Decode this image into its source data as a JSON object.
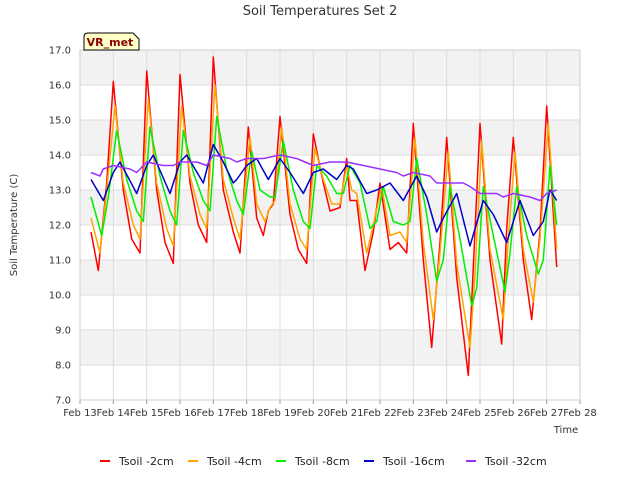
{
  "chart_data": {
    "type": "line",
    "title": "Soil Temperatures Set 2",
    "xlabel": "Time",
    "ylabel": "Soil Temperature (C)",
    "badge": "VR_met",
    "ylim": [
      7.0,
      17.0
    ],
    "yticks": [
      "7.0",
      "8.0",
      "9.0",
      "10.0",
      "11.0",
      "12.0",
      "13.0",
      "14.0",
      "15.0",
      "16.0",
      "17.0"
    ],
    "xlim": [
      13,
      28
    ],
    "xticks": [
      {
        "x": 13,
        "label": "Feb 13"
      },
      {
        "x": 14,
        "label": "Feb 14"
      },
      {
        "x": 15,
        "label": "Feb 15"
      },
      {
        "x": 16,
        "label": "Feb 16"
      },
      {
        "x": 17,
        "label": "Feb 17"
      },
      {
        "x": 18,
        "label": "Feb 18"
      },
      {
        "x": 19,
        "label": "Feb 19"
      },
      {
        "x": 20,
        "label": "Feb 20"
      },
      {
        "x": 21,
        "label": "Feb 21"
      },
      {
        "x": 22,
        "label": "Feb 22"
      },
      {
        "x": 23,
        "label": "Feb 23"
      },
      {
        "x": 24,
        "label": "Feb 24"
      },
      {
        "x": 25,
        "label": "Feb 25"
      },
      {
        "x": 26,
        "label": "Feb 26"
      },
      {
        "x": 27,
        "label": "Feb 27"
      },
      {
        "x": 28,
        "label": "Feb 28"
      }
    ],
    "legend_position": "bottom",
    "grid": true,
    "series": [
      {
        "name": "Tsoil -2cm",
        "color": "#ff0000",
        "x": [
          13.33,
          13.55,
          13.8,
          14.0,
          14.3,
          14.55,
          14.8,
          15.0,
          15.3,
          15.55,
          15.8,
          16.0,
          16.3,
          16.55,
          16.8,
          17.0,
          17.3,
          17.6,
          17.8,
          18.05,
          18.3,
          18.5,
          18.65,
          18.8,
          19.0,
          19.3,
          19.55,
          19.8,
          20.0,
          20.3,
          20.5,
          20.8,
          21.0,
          21.1,
          21.3,
          21.55,
          21.8,
          22.0,
          22.3,
          22.55,
          22.8,
          23.0,
          23.3,
          23.55,
          23.8,
          24.0,
          24.3,
          24.65,
          24.8,
          25.0,
          25.3,
          25.65,
          25.8,
          26.0,
          26.3,
          26.55,
          26.8,
          27.0,
          27.3
        ],
        "y": [
          11.8,
          10.7,
          13.2,
          16.1,
          13.0,
          11.6,
          11.2,
          16.4,
          13.0,
          11.5,
          10.9,
          16.3,
          13.2,
          12.0,
          11.5,
          16.8,
          13.0,
          11.8,
          11.2,
          14.8,
          12.2,
          11.7,
          12.4,
          12.6,
          15.1,
          12.3,
          11.3,
          10.9,
          14.6,
          13.2,
          12.4,
          12.5,
          13.9,
          12.7,
          12.7,
          10.7,
          11.8,
          13.2,
          11.3,
          11.5,
          11.2,
          14.9,
          11.0,
          8.5,
          11.5,
          14.5,
          10.5,
          7.7,
          10.8,
          14.9,
          11.0,
          8.6,
          11.9,
          14.5,
          11.0,
          9.3,
          11.8,
          15.4,
          10.8
        ]
      },
      {
        "name": "Tsoil -4cm",
        "color": "#ffa500",
        "x": [
          13.33,
          13.6,
          13.8,
          14.05,
          14.3,
          14.6,
          14.8,
          15.05,
          15.3,
          15.6,
          15.8,
          16.05,
          16.3,
          16.6,
          16.8,
          17.05,
          17.3,
          17.6,
          17.8,
          18.1,
          18.3,
          18.55,
          18.7,
          18.85,
          19.05,
          19.3,
          19.6,
          19.8,
          20.05,
          20.3,
          20.55,
          20.8,
          21.0,
          21.15,
          21.3,
          21.6,
          21.8,
          22.05,
          22.3,
          22.6,
          22.8,
          23.05,
          23.3,
          23.6,
          23.8,
          24.05,
          24.3,
          24.7,
          24.85,
          25.05,
          25.3,
          25.7,
          25.85,
          26.05,
          26.3,
          26.6,
          26.8,
          27.05,
          27.3
        ],
        "y": [
          12.2,
          11.2,
          13.0,
          15.4,
          13.2,
          12.0,
          11.6,
          15.6,
          13.2,
          11.9,
          11.4,
          15.4,
          13.4,
          12.3,
          11.9,
          16.0,
          13.3,
          12.2,
          11.6,
          14.5,
          12.6,
          12.1,
          12.5,
          12.7,
          14.8,
          12.6,
          11.6,
          11.3,
          14.2,
          13.3,
          12.6,
          12.6,
          13.7,
          13.0,
          12.9,
          11.2,
          12.0,
          13.1,
          11.7,
          11.8,
          11.5,
          14.5,
          11.5,
          9.3,
          11.2,
          14.1,
          10.9,
          8.5,
          10.6,
          14.4,
          11.3,
          9.3,
          11.6,
          14.1,
          11.3,
          9.8,
          11.6,
          14.9,
          11.3
        ]
      },
      {
        "name": "Tsoil -8cm",
        "color": "#00ee00",
        "x": [
          13.33,
          13.65,
          13.85,
          14.1,
          14.4,
          14.7,
          14.9,
          15.1,
          15.4,
          15.7,
          15.9,
          16.1,
          16.4,
          16.7,
          16.9,
          17.1,
          17.4,
          17.7,
          17.9,
          18.15,
          18.4,
          18.7,
          18.85,
          19.1,
          19.4,
          19.7,
          19.9,
          20.1,
          20.4,
          20.7,
          20.9,
          21.1,
          21.4,
          21.7,
          21.9,
          22.1,
          22.4,
          22.7,
          22.9,
          23.1,
          23.4,
          23.7,
          23.9,
          24.1,
          24.4,
          24.75,
          24.9,
          25.1,
          25.4,
          25.75,
          25.9,
          26.1,
          26.4,
          26.75,
          26.9,
          27.1,
          27.3
        ],
        "y": [
          12.8,
          11.7,
          12.8,
          14.7,
          13.3,
          12.4,
          12.1,
          14.8,
          13.4,
          12.4,
          12.0,
          14.7,
          13.5,
          12.7,
          12.4,
          15.1,
          13.6,
          12.7,
          12.3,
          14.1,
          13.0,
          12.8,
          12.8,
          14.4,
          13.0,
          12.1,
          11.9,
          13.7,
          13.4,
          12.9,
          12.9,
          13.7,
          13.2,
          11.9,
          12.1,
          13.1,
          12.1,
          12.0,
          12.1,
          13.9,
          12.3,
          10.4,
          11.0,
          13.1,
          11.6,
          9.7,
          10.2,
          13.1,
          11.7,
          10.1,
          11.2,
          13.1,
          11.7,
          10.6,
          11.0,
          13.7,
          12.0
        ]
      },
      {
        "name": "Tsoil -16cm",
        "color": "#0000cc",
        "x": [
          13.33,
          13.7,
          14.0,
          14.2,
          14.7,
          15.0,
          15.2,
          15.7,
          16.0,
          16.2,
          16.7,
          17.0,
          17.3,
          17.6,
          17.7,
          18.0,
          18.3,
          18.65,
          19.0,
          19.3,
          19.7,
          20.0,
          20.3,
          20.7,
          21.0,
          21.2,
          21.6,
          21.9,
          22.3,
          22.7,
          23.1,
          23.4,
          23.7,
          23.9,
          24.3,
          24.7,
          25.1,
          25.4,
          25.8,
          26.2,
          26.6,
          26.9,
          27.1,
          27.3
        ],
        "y": [
          13.3,
          12.7,
          13.5,
          13.8,
          12.9,
          13.7,
          14.0,
          12.9,
          13.8,
          14.0,
          13.2,
          14.3,
          13.8,
          13.2,
          13.3,
          13.7,
          13.9,
          13.3,
          13.9,
          13.5,
          12.9,
          13.5,
          13.6,
          13.3,
          13.7,
          13.6,
          12.9,
          13.0,
          13.2,
          12.7,
          13.4,
          12.8,
          11.8,
          12.2,
          12.9,
          11.4,
          12.7,
          12.3,
          11.5,
          12.7,
          11.7,
          12.1,
          13.0,
          12.7
        ]
      },
      {
        "name": "Tsoil -32cm",
        "color": "#9b30ff",
        "x": [
          13.33,
          13.6,
          13.7,
          14.0,
          14.5,
          14.7,
          15.0,
          15.5,
          15.8,
          16.0,
          16.5,
          16.8,
          17.0,
          17.5,
          17.7,
          18.0,
          18.5,
          19.0,
          19.5,
          20.0,
          20.5,
          21.0,
          21.5,
          22.0,
          22.5,
          22.7,
          23.0,
          23.5,
          23.7,
          24.0,
          24.5,
          24.7,
          25.0,
          25.5,
          25.7,
          26.0,
          26.5,
          26.8,
          27.0,
          27.3
        ],
        "y": [
          13.5,
          13.4,
          13.6,
          13.7,
          13.6,
          13.5,
          13.8,
          13.7,
          13.7,
          13.8,
          13.8,
          13.7,
          14.0,
          13.9,
          13.8,
          13.9,
          13.9,
          14.0,
          13.9,
          13.7,
          13.8,
          13.8,
          13.7,
          13.6,
          13.5,
          13.4,
          13.5,
          13.4,
          13.2,
          13.2,
          13.2,
          13.1,
          12.9,
          12.9,
          12.8,
          12.9,
          12.8,
          12.7,
          12.9,
          13.0
        ]
      }
    ]
  }
}
